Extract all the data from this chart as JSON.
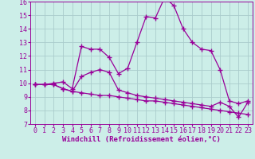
{
  "xlabel": "Windchill (Refroidissement éolien,°C)",
  "x": [
    0,
    1,
    2,
    3,
    4,
    5,
    6,
    7,
    8,
    9,
    10,
    11,
    12,
    13,
    14,
    15,
    16,
    17,
    18,
    19,
    20,
    21,
    22,
    23
  ],
  "line1": [
    9.9,
    9.9,
    10.0,
    10.1,
    9.6,
    12.7,
    12.5,
    12.5,
    11.9,
    10.7,
    11.1,
    13.0,
    14.9,
    14.8,
    16.3,
    15.7,
    14.0,
    13.0,
    12.5,
    12.4,
    11.0,
    8.7,
    8.5,
    8.7
  ],
  "line2": [
    9.9,
    9.9,
    9.9,
    9.6,
    9.4,
    9.3,
    9.2,
    9.1,
    9.1,
    9.0,
    8.9,
    8.8,
    8.7,
    8.7,
    8.6,
    8.5,
    8.4,
    8.3,
    8.2,
    8.1,
    8.0,
    7.9,
    7.8,
    7.7
  ],
  "line3": [
    9.9,
    9.9,
    9.9,
    9.6,
    9.4,
    10.5,
    10.8,
    11.0,
    10.8,
    9.5,
    9.3,
    9.1,
    9.0,
    8.9,
    8.8,
    8.7,
    8.6,
    8.5,
    8.4,
    8.3,
    8.6,
    8.3,
    7.5,
    8.6
  ],
  "line_color": "#990099",
  "bg_color": "#cceee8",
  "grid_color": "#aacccc",
  "ylim_min": 7,
  "ylim_max": 16,
  "yticks": [
    7,
    8,
    9,
    10,
    11,
    12,
    13,
    14,
    15,
    16
  ],
  "xticks": [
    0,
    1,
    2,
    3,
    4,
    5,
    6,
    7,
    8,
    9,
    10,
    11,
    12,
    13,
    14,
    15,
    16,
    17,
    18,
    19,
    20,
    21,
    22,
    23
  ],
  "marker": "+",
  "markersize": 4.0,
  "linewidth": 0.9,
  "xlabel_fontsize": 6.5,
  "tick_fontsize": 6.0
}
